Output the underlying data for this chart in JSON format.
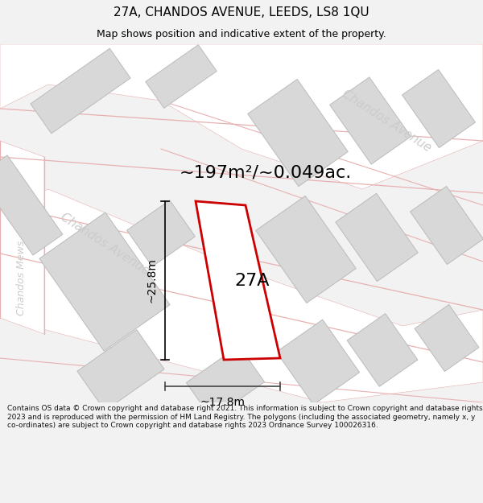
{
  "title": "27A, CHANDOS AVENUE, LEEDS, LS8 1QU",
  "subtitle": "Map shows position and indicative extent of the property.",
  "area_label": "~197m²/~0.049ac.",
  "label_27a": "27A",
  "dim_height": "~25.8m",
  "dim_width": "~17.8m",
  "copyright_text": "Contains OS data © Crown copyright and database right 2021. This information is subject to Crown copyright and database rights 2023 and is reproduced with the permission of HM Land Registry. The polygons (including the associated geometry, namely x, y co-ordinates) are subject to Crown copyright and database rights 2023 Ordnance Survey 100026316.",
  "bg_color": "#f2f2f2",
  "map_bg": "#f0eeee",
  "building_fill": "#d8d8d8",
  "building_edge": "#bbbbbb",
  "road_line": "#e8b0b0",
  "road_fill": "#ffffff",
  "property_edge": "#cc0000",
  "property_fill": "#ffffff",
  "title_color": "#000000",
  "road_label_color": "#cccccc",
  "chandos_avenue_label": "Chandos Avenue",
  "chandos_mews_label": "Chandos Mews",
  "title_fontsize": 11,
  "subtitle_fontsize": 9,
  "area_fontsize": 16,
  "label_27a_fontsize": 16,
  "dim_fontsize": 10,
  "copyright_fontsize": 6.5,
  "road_label_fontsize": 11,
  "mews_label_fontsize": 9
}
